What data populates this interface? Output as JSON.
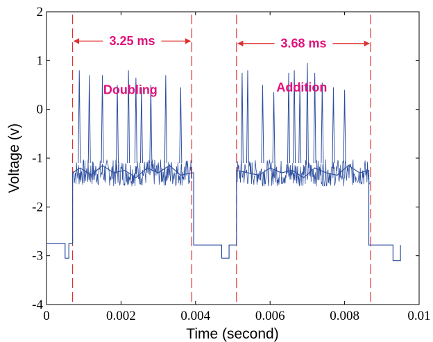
{
  "chart_data": {
    "type": "line",
    "title": "",
    "xlabel": "Time (second)",
    "ylabel": "Voltage (v)",
    "xlim": [
      0,
      0.01
    ],
    "ylim": [
      -4,
      2
    ],
    "xticks": [
      0,
      0.002,
      0.004,
      0.006,
      0.008,
      0.01
    ],
    "xtick_labels": [
      "0",
      "0.002",
      "0.004",
      "0.006",
      "0.008",
      "0.01"
    ],
    "yticks": [
      -4,
      -3,
      -2,
      -1,
      0,
      1,
      2
    ],
    "ytick_labels": [
      "-4",
      "-3",
      "-2",
      "-1",
      "0",
      "1",
      "2"
    ],
    "grid": false,
    "colors": {
      "signal": "#2e4fa0",
      "marker": "#e03030",
      "annotation": "#e0107a"
    },
    "series": [
      {
        "color": "#2e4fa0",
        "x": [
          0.0,
          0.0005,
          0.0005,
          0.0006,
          0.0006,
          0.0007,
          0.0007,
          0.0009,
          0.0012,
          0.0015,
          0.0018,
          0.0021,
          0.0024,
          0.0027,
          0.003,
          0.0033,
          0.0036,
          0.0039,
          0.00395,
          0.00395,
          0.0047,
          0.0047,
          0.0049,
          0.0049,
          0.0051,
          0.0051,
          0.0054,
          0.0057,
          0.006,
          0.0063,
          0.0066,
          0.0069,
          0.0072,
          0.0075,
          0.0078,
          0.0081,
          0.0084,
          0.00865,
          0.00865,
          0.0093,
          0.0093,
          0.0095,
          0.0095
        ],
        "y": [
          -2.75,
          -2.75,
          -3.05,
          -3.05,
          -2.75,
          -2.75,
          -1.3,
          -1.2,
          -1.35,
          -1.15,
          -1.3,
          -1.25,
          -1.4,
          -1.2,
          -1.3,
          -1.15,
          -1.35,
          -1.3,
          -1.3,
          -2.78,
          -2.78,
          -3.05,
          -3.05,
          -2.78,
          -2.78,
          -1.25,
          -1.3,
          -1.35,
          -1.2,
          -1.3,
          -1.25,
          -1.4,
          -1.2,
          -1.3,
          -1.35,
          -1.15,
          -1.3,
          -1.25,
          -2.78,
          -2.78,
          -3.1,
          -3.1,
          -2.78
        ]
      }
    ],
    "spikes": [
      {
        "x": 0.00088,
        "y": 0.8
      },
      {
        "x": 0.00115,
        "y": 0.7
      },
      {
        "x": 0.0015,
        "y": 0.7
      },
      {
        "x": 0.0019,
        "y": 0.5
      },
      {
        "x": 0.0022,
        "y": 0.8
      },
      {
        "x": 0.0024,
        "y": 0.65
      },
      {
        "x": 0.00255,
        "y": 0.45
      },
      {
        "x": 0.0028,
        "y": 0.5
      },
      {
        "x": 0.0032,
        "y": 0.7
      },
      {
        "x": 0.0036,
        "y": 0.45
      },
      {
        "x": 0.00525,
        "y": 0.75
      },
      {
        "x": 0.0054,
        "y": 0.8
      },
      {
        "x": 0.0058,
        "y": 0.5
      },
      {
        "x": 0.0061,
        "y": 0.35
      },
      {
        "x": 0.0065,
        "y": 0.75
      },
      {
        "x": 0.00665,
        "y": 0.8
      },
      {
        "x": 0.0068,
        "y": 0.5
      },
      {
        "x": 0.007,
        "y": 0.95
      },
      {
        "x": 0.0072,
        "y": 0.75
      },
      {
        "x": 0.0074,
        "y": 0.55
      },
      {
        "x": 0.0077,
        "y": 0.45
      },
      {
        "x": 0.008,
        "y": 0.4
      }
    ],
    "vertical_markers": [
      0.0007,
      0.0039,
      0.0051,
      0.0087
    ],
    "annotations": [
      {
        "text": "3.25 ms",
        "x1": 0.0007,
        "x2": 0.0039,
        "y": 1.4
      },
      {
        "text": "3.68 ms",
        "x1": 0.0051,
        "x2": 0.0087,
        "y": 1.35
      },
      {
        "text": "Doubling",
        "x": 0.00225,
        "y": 0.4
      },
      {
        "text": "Addition",
        "x": 0.00685,
        "y": 0.45
      }
    ]
  }
}
